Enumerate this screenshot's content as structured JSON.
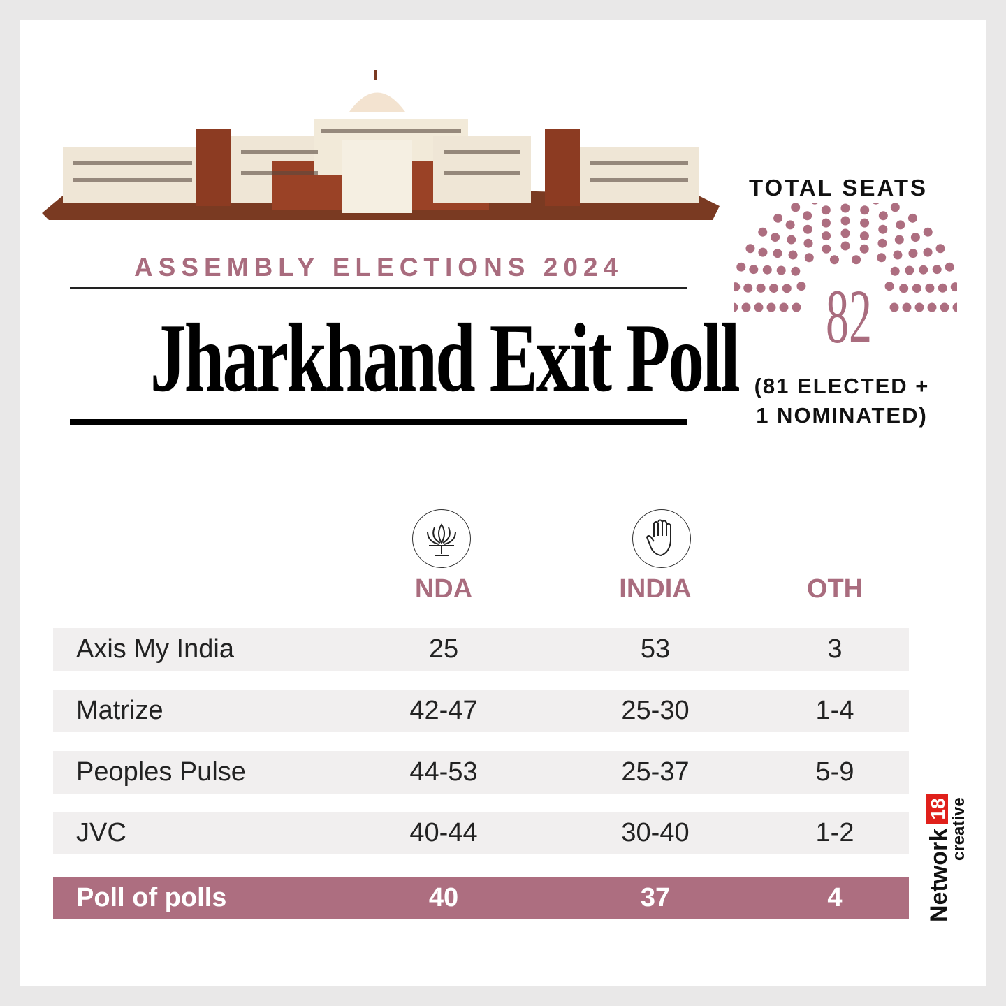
{
  "header": {
    "kicker": "ASSEMBLY ELECTIONS 2024",
    "title": "Jharkhand Exit Poll"
  },
  "total_seats": {
    "label": "TOTAL SEATS",
    "number": "82",
    "subtitle_line1": "(81 ELECTED +",
    "subtitle_line2": "1 NOMINATED)"
  },
  "table": {
    "columns": [
      "NDA",
      "INDIA",
      "OTH"
    ],
    "rows": [
      {
        "pollster": "Axis My India",
        "nda": "25",
        "india": "53",
        "oth": "3"
      },
      {
        "pollster": "Matrize",
        "nda": "42-47",
        "india": "25-30",
        "oth": "1-4"
      },
      {
        "pollster": "Peoples Pulse",
        "nda": "44-53",
        "india": "25-37",
        "oth": "5-9"
      },
      {
        "pollster": "JVC",
        "nda": "40-44",
        "india": "30-40",
        "oth": "1-2"
      }
    ],
    "total": {
      "pollster": "Poll of polls",
      "nda": "40",
      "india": "37",
      "oth": "4"
    }
  },
  "brand": {
    "name": "Network",
    "num": "18",
    "sub": "creative"
  },
  "colors": {
    "accent": "#ad6e80",
    "row_bg": "#f1efef",
    "brand_red": "#e0201b"
  },
  "icons": {
    "nda": "lotus-icon",
    "india": "hand-icon"
  }
}
